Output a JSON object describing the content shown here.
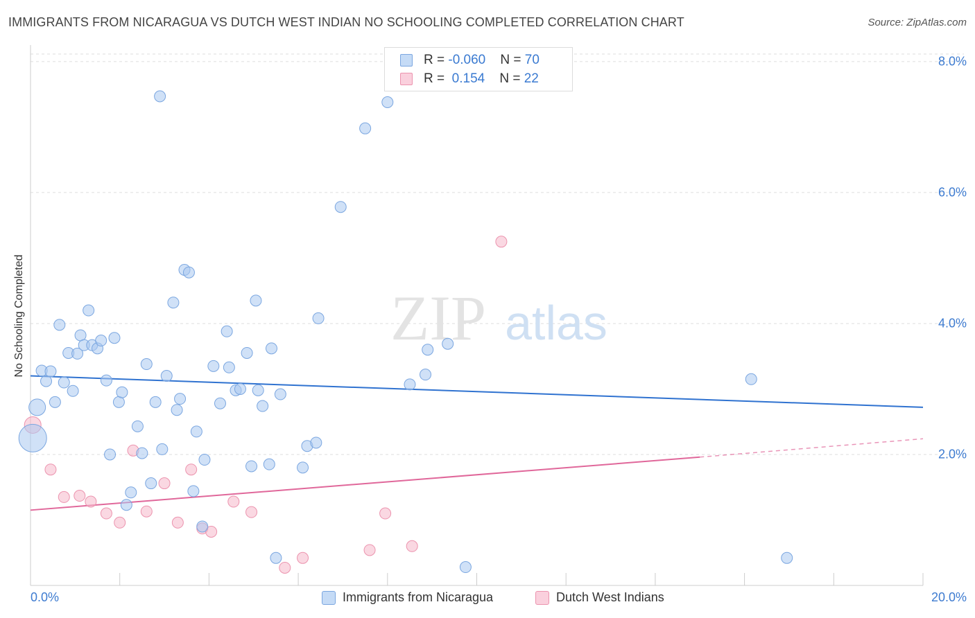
{
  "title": "IMMIGRANTS FROM NICARAGUA VS DUTCH WEST INDIAN NO SCHOOLING COMPLETED CORRELATION CHART",
  "source": "Source: ZipAtlas.com",
  "watermark": {
    "zip": "ZIP",
    "atlas": "atlas"
  },
  "stats": {
    "rows": [
      {
        "r_label": "R = ",
        "r_value": "-0.060",
        "n_label": "N = ",
        "n_value": "70",
        "color": "#a9c8f0"
      },
      {
        "r_label": "R = ",
        "r_value": " 0.154",
        "n_label": "N = ",
        "n_value": "22",
        "color": "#f6b8cb"
      }
    ]
  },
  "legend": {
    "series1": "Immigrants from Nicaragua",
    "series2": "Dutch West Indians"
  },
  "colors": {
    "blue_fill": "#a9c8f0",
    "blue_stroke": "#7aa6e0",
    "blue_line": "#2f72d0",
    "pink_fill": "#f6b8cb",
    "pink_stroke": "#ec93ae",
    "pink_line": "#e0679a",
    "tick_text": "#3d7bd0"
  },
  "chart_data": {
    "type": "scatter",
    "title": "IMMIGRANTS FROM NICARAGUA VS DUTCH WEST INDIAN NO SCHOOLING COMPLETED CORRELATION CHART",
    "xlabel": "",
    "ylabel": "No Schooling Completed",
    "xlim": [
      0,
      20
    ],
    "ylim": [
      0,
      8.2
    ],
    "x_tick_labels": [
      "0.0%",
      "20.0%"
    ],
    "y_ticks": [
      2,
      4,
      6,
      8
    ],
    "y_tick_labels": [
      "2.0%",
      "4.0%",
      "6.0%",
      "8.0%"
    ],
    "grid": "horizontal dashed",
    "legend_position": "bottom",
    "series": [
      {
        "name": "Immigrants from Nicaragua",
        "r": -0.06,
        "n": 70,
        "trend": {
          "x": [
            0,
            20
          ],
          "y": [
            3.2,
            2.72
          ]
        },
        "points": [
          [
            0.15,
            2.72
          ],
          [
            0.25,
            3.28
          ],
          [
            0.35,
            3.12
          ],
          [
            0.45,
            3.27
          ],
          [
            0.55,
            2.8
          ],
          [
            0.65,
            3.98
          ],
          [
            0.75,
            3.1
          ],
          [
            0.85,
            3.55
          ],
          [
            0.95,
            2.97
          ],
          [
            1.05,
            3.54
          ],
          [
            1.12,
            3.82
          ],
          [
            1.2,
            3.67
          ],
          [
            1.3,
            4.2
          ],
          [
            1.38,
            3.67
          ],
          [
            1.5,
            3.62
          ],
          [
            1.58,
            3.74
          ],
          [
            1.7,
            3.13
          ],
          [
            1.78,
            2.0
          ],
          [
            1.88,
            3.78
          ],
          [
            1.98,
            2.8
          ],
          [
            2.05,
            2.95
          ],
          [
            2.15,
            1.23
          ],
          [
            2.25,
            1.42
          ],
          [
            2.4,
            2.43
          ],
          [
            2.5,
            2.02
          ],
          [
            2.6,
            3.38
          ],
          [
            2.7,
            1.56
          ],
          [
            2.8,
            2.8
          ],
          [
            2.9,
            7.47
          ],
          [
            2.95,
            2.08
          ],
          [
            3.05,
            3.2
          ],
          [
            3.2,
            4.32
          ],
          [
            3.28,
            2.68
          ],
          [
            3.35,
            2.85
          ],
          [
            3.45,
            4.82
          ],
          [
            3.55,
            4.78
          ],
          [
            3.65,
            1.44
          ],
          [
            3.72,
            2.35
          ],
          [
            3.85,
            0.9
          ],
          [
            3.9,
            1.92
          ],
          [
            4.1,
            3.35
          ],
          [
            4.25,
            2.78
          ],
          [
            4.45,
            3.33
          ],
          [
            4.4,
            3.88
          ],
          [
            4.6,
            2.98
          ],
          [
            4.7,
            3.0
          ],
          [
            4.85,
            3.55
          ],
          [
            4.95,
            1.82
          ],
          [
            5.1,
            2.98
          ],
          [
            5.05,
            4.35
          ],
          [
            5.2,
            2.74
          ],
          [
            5.35,
            1.85
          ],
          [
            5.4,
            3.62
          ],
          [
            5.5,
            0.42
          ],
          [
            5.6,
            2.92
          ],
          [
            6.1,
            1.8
          ],
          [
            6.2,
            2.13
          ],
          [
            6.4,
            2.18
          ],
          [
            6.45,
            4.08
          ],
          [
            6.95,
            5.78
          ],
          [
            7.5,
            6.98
          ],
          [
            8.0,
            7.38
          ],
          [
            8.5,
            3.07
          ],
          [
            8.85,
            3.22
          ],
          [
            8.9,
            3.6
          ],
          [
            9.35,
            3.69
          ],
          [
            9.75,
            0.28
          ],
          [
            16.15,
            3.15
          ],
          [
            16.95,
            0.42
          ],
          [
            0.05,
            2.25
          ]
        ]
      },
      {
        "name": "Dutch West Indians",
        "r": 0.154,
        "n": 22,
        "trend": {
          "x": [
            0,
            15
          ],
          "y": [
            1.15,
            1.96
          ]
        },
        "trend_dashed": {
          "x": [
            15,
            20
          ],
          "y": [
            1.96,
            2.24
          ]
        },
        "points": [
          [
            0.05,
            2.45
          ],
          [
            0.45,
            1.77
          ],
          [
            0.75,
            1.35
          ],
          [
            1.1,
            1.37
          ],
          [
            1.35,
            1.28
          ],
          [
            1.7,
            1.1
          ],
          [
            2.0,
            0.96
          ],
          [
            2.3,
            2.06
          ],
          [
            2.6,
            1.13
          ],
          [
            3.0,
            1.56
          ],
          [
            3.3,
            0.96
          ],
          [
            3.6,
            1.77
          ],
          [
            3.85,
            0.87
          ],
          [
            4.05,
            0.82
          ],
          [
            4.55,
            1.28
          ],
          [
            4.95,
            1.12
          ],
          [
            5.7,
            0.27
          ],
          [
            6.1,
            0.42
          ],
          [
            7.6,
            0.54
          ],
          [
            7.95,
            1.1
          ],
          [
            8.55,
            0.6
          ],
          [
            10.55,
            5.25
          ]
        ]
      }
    ]
  }
}
